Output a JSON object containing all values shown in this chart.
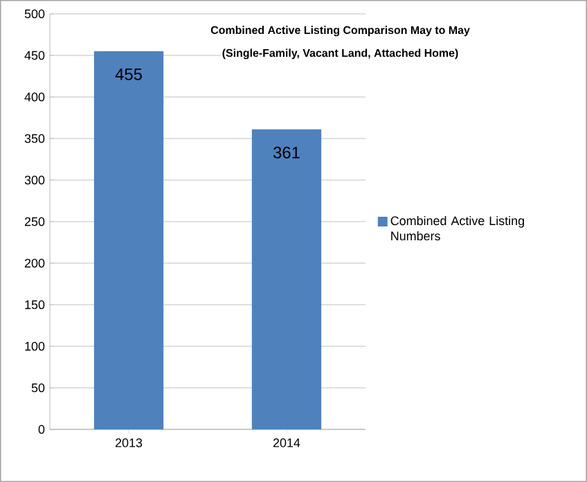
{
  "chart_data": {
    "type": "bar",
    "title": "Combined  Active Listing Comparison  May to May",
    "subtitle": "(Single-Family, Vacant Land, Attached Home)",
    "categories": [
      "2013",
      "2014"
    ],
    "series": [
      {
        "name": "Combined Active Listing Numbers",
        "color": "#4f81bd",
        "values": [
          455,
          361
        ]
      }
    ],
    "ylim": [
      0,
      500
    ],
    "yticks": [
      0,
      50,
      100,
      150,
      200,
      250,
      300,
      350,
      400,
      450,
      500
    ],
    "grid": "y",
    "legend": "right",
    "data_labels": true
  }
}
